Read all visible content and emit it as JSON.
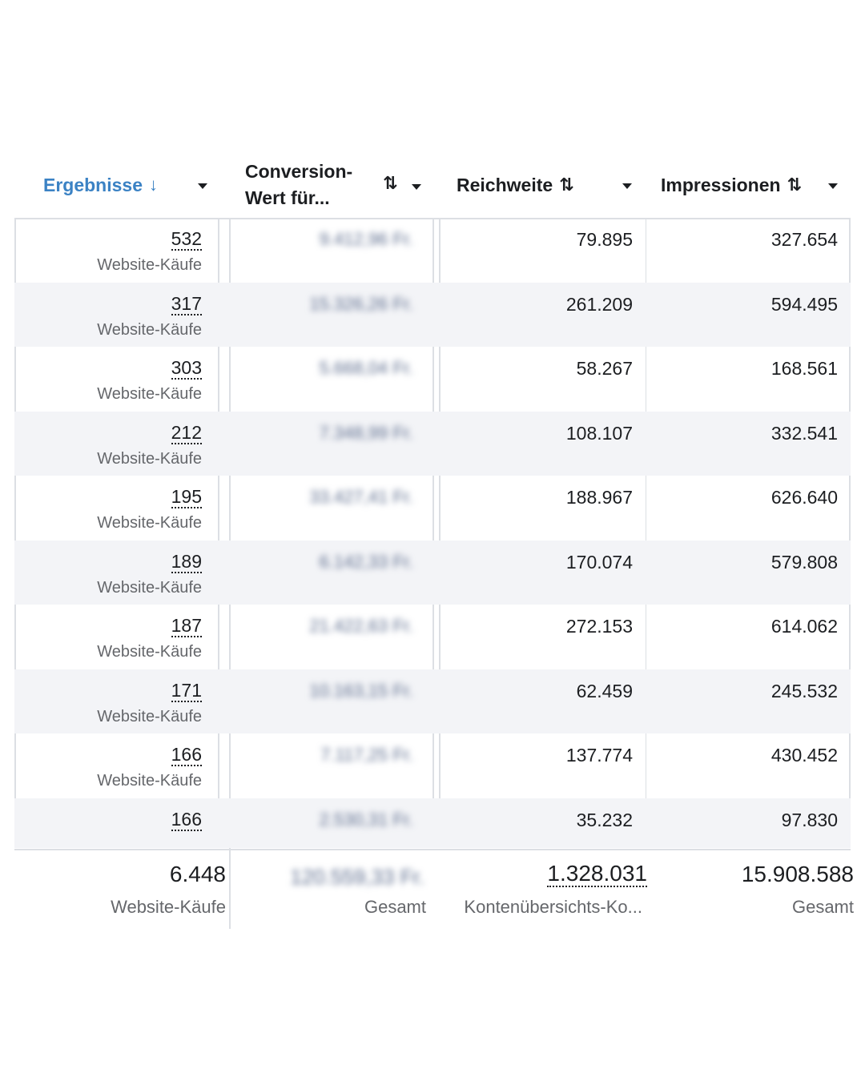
{
  "columns": [
    {
      "label": "Ergebnisse",
      "sort": "↓",
      "active": true
    },
    {
      "label_line1": "Conversion-",
      "label_line2": "Wert für...",
      "sort": "⇅"
    },
    {
      "label": "Reichweite",
      "sort": "⇅"
    },
    {
      "label": "Impressionen",
      "sort": "⇅"
    }
  ],
  "rows": [
    {
      "ergebnisse": "532",
      "ergebnisse_sub": "Website-Käufe",
      "conversion": "9.412,96 Fr.",
      "reichweite": "79.895",
      "impressionen": "327.654"
    },
    {
      "ergebnisse": "317",
      "ergebnisse_sub": "Website-Käufe",
      "conversion": "15.326,26 Fr.",
      "reichweite": "261.209",
      "impressionen": "594.495"
    },
    {
      "ergebnisse": "303",
      "ergebnisse_sub": "Website-Käufe",
      "conversion": "5.668,04 Fr.",
      "reichweite": "58.267",
      "impressionen": "168.561"
    },
    {
      "ergebnisse": "212",
      "ergebnisse_sub": "Website-Käufe",
      "conversion": "7.348,99 Fr.",
      "reichweite": "108.107",
      "impressionen": "332.541"
    },
    {
      "ergebnisse": "195",
      "ergebnisse_sub": "Website-Käufe",
      "conversion": "33.427,41 Fr.",
      "reichweite": "188.967",
      "impressionen": "626.640"
    },
    {
      "ergebnisse": "189",
      "ergebnisse_sub": "Website-Käufe",
      "conversion": "6.142,33 Fr.",
      "reichweite": "170.074",
      "impressionen": "579.808"
    },
    {
      "ergebnisse": "187",
      "ergebnisse_sub": "Website-Käufe",
      "conversion": "21.422,63 Fr.",
      "reichweite": "272.153",
      "impressionen": "614.062"
    },
    {
      "ergebnisse": "171",
      "ergebnisse_sub": "Website-Käufe",
      "conversion": "10.163,15 Fr.",
      "reichweite": "62.459",
      "impressionen": "245.532"
    },
    {
      "ergebnisse": "166",
      "ergebnisse_sub": "Website-Käufe",
      "conversion": "7.117,25 Fr.",
      "reichweite": "137.774",
      "impressionen": "430.452"
    },
    {
      "ergebnisse": "166",
      "ergebnisse_sub": "",
      "conversion": "2.530,31 Fr.",
      "reichweite": "35.232",
      "impressionen": "97.830"
    }
  ],
  "totals": {
    "ergebnisse": "6.448",
    "ergebnisse_sub": "Website-Käufe",
    "conversion": "120.559,33 Fr.",
    "conversion_sub": "Gesamt",
    "reichweite": "1.328.031",
    "reichweite_sub": "Kontenübersichts-Ko...",
    "impressionen": "15.908.588",
    "impressionen_sub": "Gesamt"
  }
}
